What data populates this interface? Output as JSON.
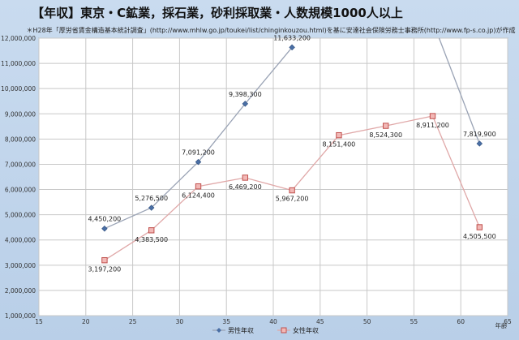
{
  "chart_data": {
    "type": "line",
    "title": "【年収】東京・C鉱業，採石業，砂利採取業・人数規模1000人以上",
    "subtitle": "＊H28年「厚労省賃金構造基本統計調査」(http://www.mhlw.go.jp/toukei/list/chinginkouzou.html)を基に安達社会保険労務士事務所(http://www.fp-s.co.jp)が作成",
    "xlabel": "年齢",
    "ylabel": "",
    "xlim": [
      15,
      65
    ],
    "ylim": [
      1000000,
      12000000
    ],
    "x_ticks": [
      "15",
      "20",
      "25",
      "30",
      "35",
      "40",
      "45",
      "50",
      "55",
      "60",
      "65"
    ],
    "y_ticks": [
      "1,000,000",
      "2,000,000",
      "3,000,000",
      "4,000,000",
      "5,000,000",
      "6,000,000",
      "7,000,000",
      "8,000,000",
      "9,000,000",
      "10,000,000",
      "11,000,000",
      "12,000,000"
    ],
    "grid": true,
    "legend_position": "bottom",
    "series": [
      {
        "name": "男性年収",
        "color": "#4a6fa5",
        "marker": "diamond",
        "x": [
          22,
          27,
          32,
          37,
          42,
          62
        ],
        "values": [
          4450200,
          5276500,
          7091200,
          9398300,
          11633200,
          7819900
        ],
        "labels": [
          "4,450,200",
          "5,276,500",
          "7,091,200",
          "9,398,300",
          "11,633,200",
          "7,819,900"
        ],
        "offscreen_segment_from_x": 57
      },
      {
        "name": "女性年収",
        "color": "#c0504d",
        "marker": "square",
        "x": [
          22,
          27,
          32,
          37,
          42,
          47,
          52,
          57,
          62
        ],
        "values": [
          3197200,
          4383500,
          6124400,
          6469200,
          5967200,
          8151400,
          8524300,
          8911200,
          4505500
        ],
        "labels": [
          "3,197,200",
          "4,383,500",
          "6,124,400",
          "6,469,200",
          "5,967,200",
          "8,151,400",
          "8,524,300",
          "8,911,200",
          "4,505,500"
        ]
      }
    ]
  }
}
